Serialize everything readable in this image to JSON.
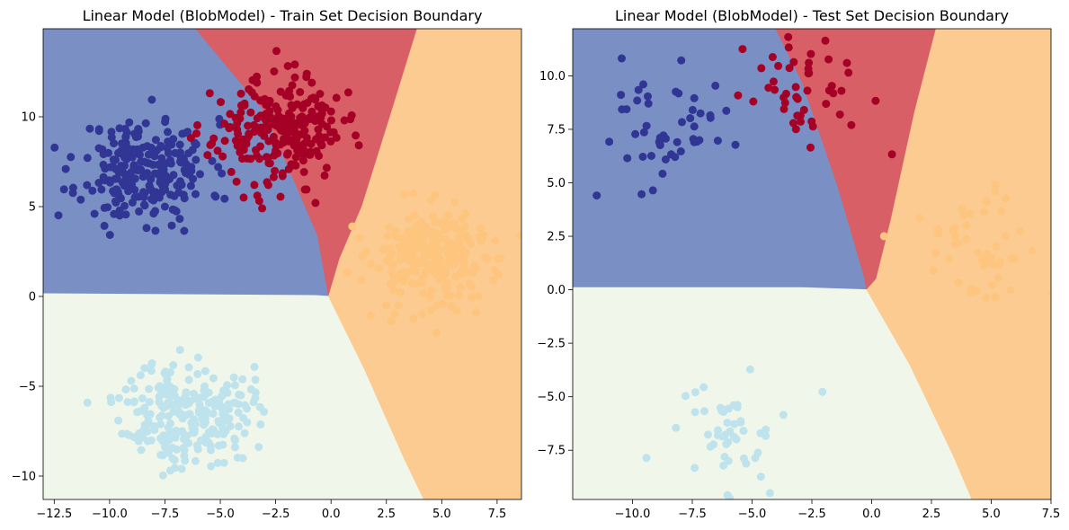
{
  "chart_data": [
    {
      "type": "scatter",
      "title": "Linear Model (BlobModel) - Train Set Decision Boundary",
      "xlim": [
        -13.0,
        8.6
      ],
      "ylim": [
        -11.3,
        14.9
      ],
      "xticks": [
        -12.5,
        -10.0,
        -7.5,
        -5.0,
        -2.5,
        0.0,
        2.5,
        5.0,
        7.5
      ],
      "xtick_labels": [
        "−12.5",
        "−10.0",
        "−7.5",
        "−5.0",
        "−2.5",
        "0.0",
        "2.5",
        "5.0",
        "7.5"
      ],
      "yticks": [
        -10,
        -5,
        0,
        5,
        10
      ],
      "ytick_labels": [
        "−10",
        "−5",
        "0",
        "5",
        "10"
      ],
      "grid": false,
      "decision_regions": [
        {
          "class": 0,
          "color": "#7a8fc3",
          "polygon": [
            [
              -13.0,
              14.9
            ],
            [
              -6.1,
              14.9
            ],
            [
              -3.0,
              10.3
            ],
            [
              -0.6,
              3.4
            ],
            [
              -0.1,
              0.0
            ],
            [
              -0.7,
              0.05
            ],
            [
              -13.0,
              0.15
            ]
          ]
        },
        {
          "class": 1,
          "color": "#d95f66",
          "polygon": [
            [
              -6.1,
              14.9
            ],
            [
              3.9,
              14.9
            ],
            [
              2.8,
              10.5
            ],
            [
              1.4,
              5.0
            ],
            [
              0.4,
              2.1
            ],
            [
              -0.1,
              0.0
            ],
            [
              -0.6,
              3.4
            ],
            [
              -3.0,
              10.3
            ]
          ]
        },
        {
          "class": 2,
          "color": "#f0f7ea",
          "polygon": [
            [
              -13.0,
              0.15
            ],
            [
              -0.7,
              0.05
            ],
            [
              -0.1,
              0.0
            ],
            [
              1.5,
              -4.0
            ],
            [
              3.3,
              -9.0
            ],
            [
              4.2,
              -11.3
            ],
            [
              -13.0,
              -11.3
            ]
          ]
        },
        {
          "class": 3,
          "color": "#fccb91",
          "polygon": [
            [
              3.9,
              14.9
            ],
            [
              8.6,
              14.9
            ],
            [
              8.6,
              -11.3
            ],
            [
              4.2,
              -11.3
            ],
            [
              3.3,
              -9.0
            ],
            [
              1.5,
              -4.0
            ],
            [
              -0.1,
              0.0
            ],
            [
              0.4,
              2.1
            ],
            [
              1.4,
              5.0
            ],
            [
              2.8,
              10.5
            ]
          ]
        }
      ],
      "series": [
        {
          "class": 0,
          "color": "#313695",
          "center": [
            -8.4,
            7.0
          ],
          "spread": 1.45,
          "count": 250,
          "seed": 11
        },
        {
          "class": 1,
          "color": "#a50026",
          "center": [
            -2.4,
            9.2
          ],
          "spread": 1.45,
          "count": 250,
          "seed": 23
        },
        {
          "class": 2,
          "color": "#bfe3ec",
          "center": [
            -6.5,
            -6.5
          ],
          "spread": 1.45,
          "count": 250,
          "seed": 37
        },
        {
          "class": 3,
          "color": "#fdc57e",
          "center": [
            4.6,
            2.1
          ],
          "spread": 1.45,
          "count": 250,
          "seed": 53
        }
      ]
    },
    {
      "type": "scatter",
      "title": "Linear Model (BlobModel) - Test Set Decision Boundary",
      "xlim": [
        -12.5,
        7.5
      ],
      "ylim": [
        -9.8,
        12.2
      ],
      "xticks": [
        -10.0,
        -7.5,
        -5.0,
        -2.5,
        0.0,
        2.5,
        5.0,
        7.5
      ],
      "xtick_labels": [
        "−10.0",
        "−7.5",
        "−5.0",
        "−2.5",
        "0.0",
        "2.5",
        "5.0",
        "7.5"
      ],
      "yticks": [
        -7.5,
        -5.0,
        -2.5,
        0.0,
        2.5,
        5.0,
        7.5,
        10.0
      ],
      "ytick_labels": [
        "−7.5",
        "−5.0",
        "−2.5",
        "0.0",
        "2.5",
        "5.0",
        "7.5",
        "10.0"
      ],
      "grid": false,
      "decision_regions": [
        {
          "class": 0,
          "color": "#7a8fc3",
          "polygon": [
            [
              -12.5,
              12.2
            ],
            [
              -4.0,
              12.2
            ],
            [
              -2.9,
              9.7
            ],
            [
              -1.4,
              4.8
            ],
            [
              -0.3,
              0.6
            ],
            [
              -0.2,
              0.0
            ],
            [
              -2.9,
              0.1
            ],
            [
              -12.5,
              0.1
            ]
          ]
        },
        {
          "class": 1,
          "color": "#d95f66",
          "polygon": [
            [
              -4.0,
              12.2
            ],
            [
              2.7,
              12.2
            ],
            [
              1.8,
              8.3
            ],
            [
              0.8,
              3.2
            ],
            [
              0.2,
              0.5
            ],
            [
              -0.2,
              0.0
            ],
            [
              -0.3,
              0.6
            ],
            [
              -1.4,
              4.8
            ],
            [
              -2.9,
              9.7
            ]
          ]
        },
        {
          "class": 2,
          "color": "#f0f7ea",
          "polygon": [
            [
              -12.5,
              0.1
            ],
            [
              -2.9,
              0.1
            ],
            [
              -0.2,
              0.0
            ],
            [
              1.6,
              -3.5
            ],
            [
              3.4,
              -7.7
            ],
            [
              4.2,
              -9.8
            ],
            [
              -12.5,
              -9.8
            ]
          ]
        },
        {
          "class": 3,
          "color": "#fccb91",
          "polygon": [
            [
              2.7,
              12.2
            ],
            [
              7.5,
              12.2
            ],
            [
              7.5,
              -9.8
            ],
            [
              4.2,
              -9.8
            ],
            [
              3.4,
              -7.7
            ],
            [
              1.6,
              -3.5
            ],
            [
              -0.2,
              0.0
            ],
            [
              0.2,
              0.5
            ],
            [
              0.8,
              3.2
            ],
            [
              1.8,
              8.3
            ]
          ]
        }
      ],
      "series": [
        {
          "class": 0,
          "color": "#313695",
          "center": [
            -8.4,
            7.4
          ],
          "spread": 1.45,
          "count": 50,
          "seed": 71
        },
        {
          "class": 1,
          "color": "#a50026",
          "center": [
            -2.6,
            9.4
          ],
          "spread": 1.45,
          "count": 50,
          "seed": 83
        },
        {
          "class": 2,
          "color": "#bfe3ec",
          "center": [
            -6.5,
            -6.7
          ],
          "spread": 1.45,
          "count": 50,
          "seed": 97
        },
        {
          "class": 3,
          "color": "#fdc57e",
          "center": [
            4.8,
            2.0
          ],
          "spread": 1.45,
          "count": 50,
          "seed": 109
        }
      ]
    }
  ]
}
